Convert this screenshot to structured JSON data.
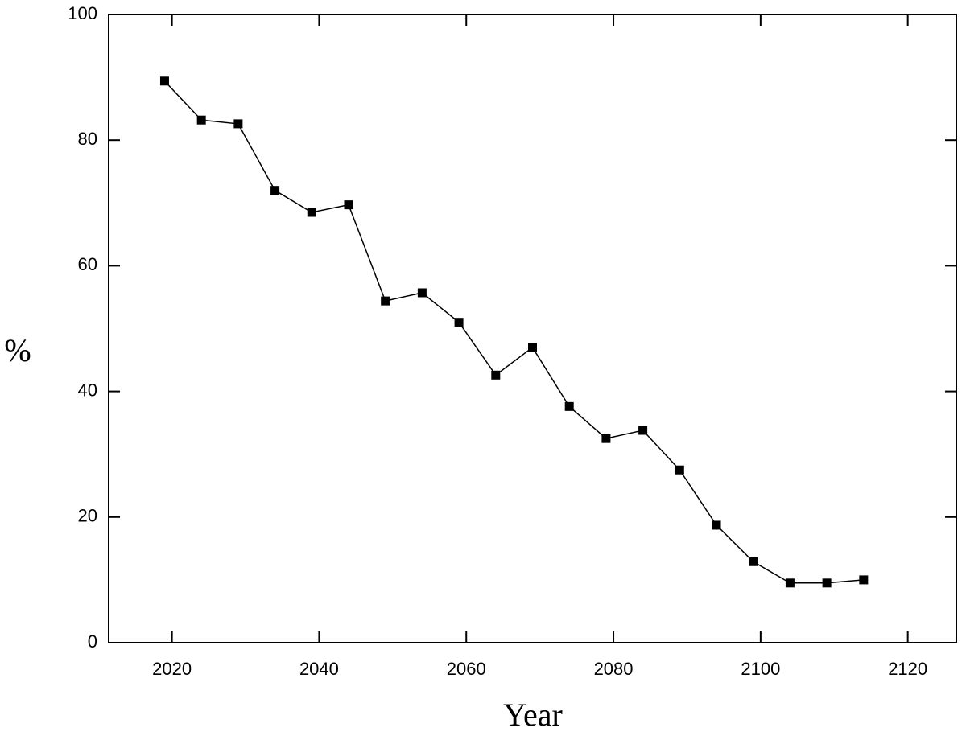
{
  "chart_data": {
    "type": "line",
    "x_label": "Year",
    "y_label": "%",
    "x": [
      2019,
      2024,
      2029,
      2034,
      2039,
      2044,
      2049,
      2054,
      2059,
      2064,
      2069,
      2074,
      2079,
      2084,
      2089,
      2094,
      2099,
      2104,
      2109,
      2114
    ],
    "series": [
      {
        "color": "#000000",
        "values": [
          89.4,
          83.2,
          82.6,
          72.0,
          68.5,
          69.7,
          54.4,
          55.7,
          51.0,
          42.6,
          47.0,
          37.6,
          32.5,
          33.8,
          27.5,
          18.7,
          12.9,
          9.5,
          9.5,
          10.0
        ]
      }
    ],
    "xlim": [
      2011.4,
      2126.6
    ],
    "xticks": [
      2020,
      2040,
      2060,
      2080,
      2100,
      2120
    ],
    "ylim": [
      0,
      100
    ],
    "yticks": [
      0,
      20,
      40,
      60,
      80,
      100
    ],
    "grid": false
  }
}
